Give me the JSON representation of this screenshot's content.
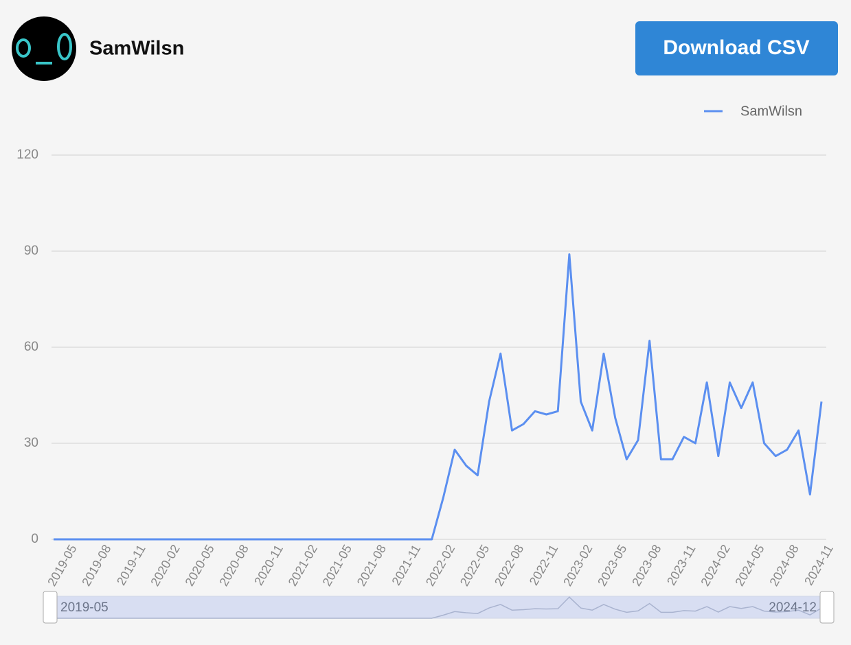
{
  "header": {
    "username": "SamWilsn",
    "button": "Download CSV"
  },
  "chart_data": {
    "type": "line",
    "categories": [
      "2019-05",
      null,
      null,
      "2019-08",
      null,
      null,
      "2019-11",
      null,
      null,
      "2020-02",
      null,
      null,
      "2020-05",
      null,
      null,
      "2020-08",
      null,
      null,
      "2020-11",
      null,
      null,
      "2021-02",
      null,
      null,
      "2021-05",
      null,
      null,
      "2021-08",
      null,
      null,
      "2021-11",
      null,
      null,
      "2022-02",
      null,
      null,
      "2022-05",
      null,
      null,
      "2022-08",
      null,
      null,
      "2022-11",
      null,
      null,
      "2023-02",
      null,
      null,
      "2023-05",
      null,
      null,
      "2023-08",
      null,
      null,
      "2023-11",
      null,
      null,
      "2024-02",
      null,
      null,
      "2024-05",
      null,
      null,
      "2024-08",
      null,
      null,
      "2024-11",
      null
    ],
    "series": [
      {
        "name": "SamWilsn",
        "color": "#5b8ff0",
        "values": [
          0,
          0,
          0,
          0,
          0,
          0,
          0,
          0,
          0,
          0,
          0,
          0,
          0,
          0,
          0,
          0,
          0,
          0,
          0,
          0,
          0,
          0,
          0,
          0,
          0,
          0,
          0,
          0,
          0,
          0,
          0,
          0,
          0,
          0,
          13,
          28,
          23,
          20,
          43,
          58,
          34,
          36,
          40,
          39,
          40,
          89,
          43,
          34,
          58,
          38,
          25,
          31,
          62,
          25,
          25,
          32,
          30,
          49,
          26,
          49,
          41,
          49,
          30,
          26,
          28,
          34,
          14,
          43
        ]
      }
    ],
    "ylim": [
      0,
      120
    ],
    "yticks": [
      0,
      30,
      60,
      90,
      120
    ],
    "grid": true,
    "legend": "top-right",
    "zoom_start": "2019-05",
    "zoom_end": "2024-12"
  }
}
